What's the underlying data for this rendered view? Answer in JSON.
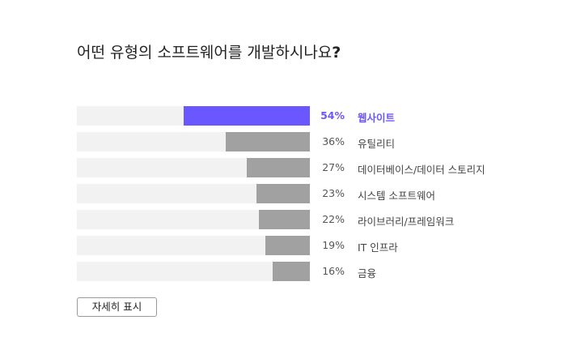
{
  "question": {
    "text": "어떤 유형의 소프트웨어를 개발하시나요",
    "mark": "?"
  },
  "chart_data": {
    "type": "bar",
    "orientation": "horizontal",
    "categories": [
      "웹사이트",
      "유틸리티",
      "데이터베이스/데이터 스토리지",
      "시스템 소프트웨어",
      "라이브러리/프레임워크",
      "IT 인프라",
      "금융"
    ],
    "values": [
      54,
      36,
      27,
      23,
      22,
      19,
      16
    ],
    "value_labels": [
      "54%",
      "36%",
      "27%",
      "23%",
      "22%",
      "19%",
      "16%"
    ],
    "highlighted_index": 0,
    "xlim": [
      0,
      100
    ],
    "colors": {
      "highlight": "#6b57ff",
      "bar": "#a1a1a1",
      "track": "#f2f2f2"
    }
  },
  "more_button": {
    "label": "자세히 표시"
  }
}
